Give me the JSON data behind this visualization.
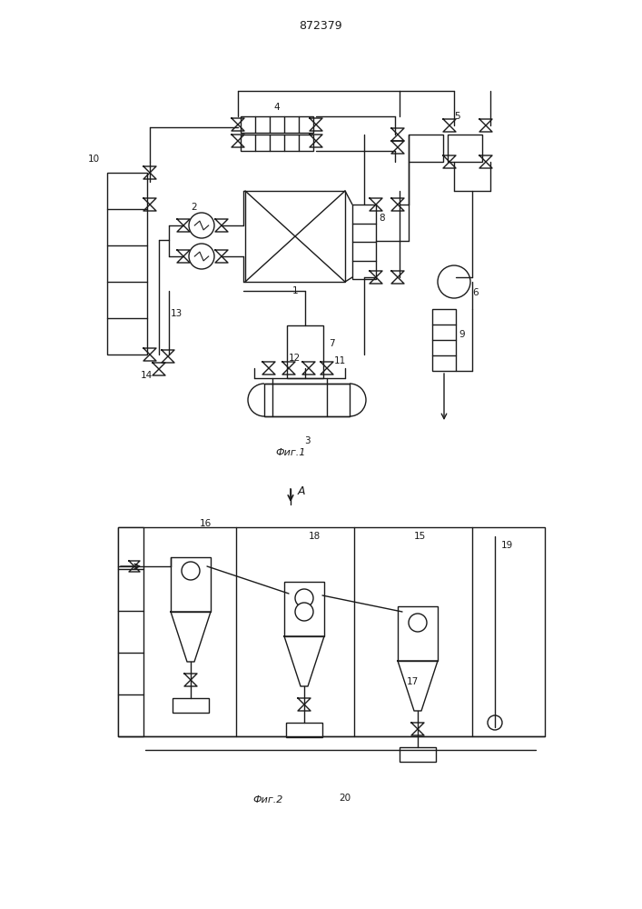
{
  "title": "872379",
  "fig1_caption": "Фиг.1",
  "fig2_caption": "Фиг.2",
  "arrow_label": "A",
  "line_color": "#1a1a1a",
  "bg_color": "#ffffff"
}
